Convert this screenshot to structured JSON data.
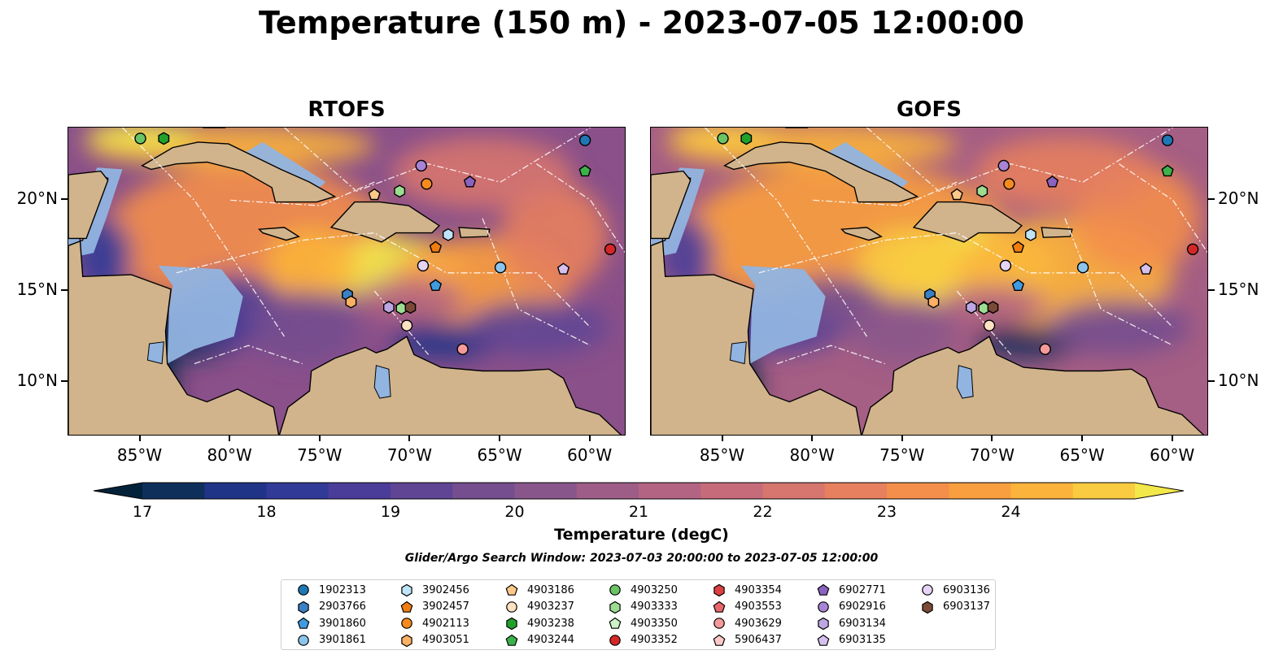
{
  "title": "Temperature (150 m) - 2023-07-05 12:00:00",
  "panels": [
    {
      "title": "RTOFS",
      "variant": 0
    },
    {
      "title": "GOFS",
      "variant": 1
    }
  ],
  "lon_ticks": [
    "85°W",
    "80°W",
    "75°W",
    "70°W",
    "65°W",
    "60°W"
  ],
  "lat_ticks": [
    "20°N",
    "15°N",
    "10°N"
  ],
  "colorbar": {
    "label": "Temperature (degC)",
    "ticks": [
      "17",
      "18",
      "19",
      "20",
      "21",
      "22",
      "23",
      "24"
    ],
    "vmin": 16.75,
    "vmax": 24.5,
    "step": 0.5,
    "colors": [
      "#03223a",
      "#0d2f5a",
      "#1f3487",
      "#323a97",
      "#4a3d99",
      "#5f4594",
      "#744e8f",
      "#89568b",
      "#9e5d87",
      "#b36482",
      "#c56b7a",
      "#d6766e",
      "#e6805e",
      "#f48e4b",
      "#fa9f3f",
      "#fbb33b",
      "#f9cb40",
      "#f2e84a"
    ]
  },
  "search_window": "Glider/Argo Search Window: 2023-07-03 20:00:00 to 2023-07-05 12:00:00",
  "legend": [
    {
      "id": "1902313",
      "color": "#1f77b4",
      "marker": "circle"
    },
    {
      "id": "2903766",
      "color": "#3b7fc4",
      "marker": "hexagon"
    },
    {
      "id": "3901860",
      "color": "#3f9be0",
      "marker": "pentagon"
    },
    {
      "id": "3901861",
      "color": "#8cc4ec",
      "marker": "circle"
    },
    {
      "id": "3902456",
      "color": "#bfe4f7",
      "marker": "hexagon"
    },
    {
      "id": "3902457",
      "color": "#f07d10",
      "marker": "pentagon"
    },
    {
      "id": "4902113",
      "color": "#f58a1f",
      "marker": "circle"
    },
    {
      "id": "4903051",
      "color": "#fbb064",
      "marker": "hexagon"
    },
    {
      "id": "4903186",
      "color": "#fdc98a",
      "marker": "pentagon"
    },
    {
      "id": "4903237",
      "color": "#fde2c2",
      "marker": "circle"
    },
    {
      "id": "4903238",
      "color": "#22a02c",
      "marker": "hexagon"
    },
    {
      "id": "4903244",
      "color": "#3cb34a",
      "marker": "pentagon"
    },
    {
      "id": "4903250",
      "color": "#6ac463",
      "marker": "circle"
    },
    {
      "id": "4903333",
      "color": "#9cdd92",
      "marker": "hexagon"
    },
    {
      "id": "4903350",
      "color": "#cdf2c6",
      "marker": "pentagon"
    },
    {
      "id": "4903352",
      "color": "#d62728",
      "marker": "circle"
    },
    {
      "id": "4903354",
      "color": "#dc4040",
      "marker": "hexagon"
    },
    {
      "id": "4903553",
      "color": "#e8676b",
      "marker": "pentagon"
    },
    {
      "id": "4903629",
      "color": "#f59a9a",
      "marker": "circle"
    },
    {
      "id": "5906437",
      "color": "#fcc9c9",
      "marker": "pentagon"
    },
    {
      "id": "6902771",
      "color": "#8c62c0",
      "marker": "pentagon"
    },
    {
      "id": "6902916",
      "color": "#a884d6",
      "marker": "circle"
    },
    {
      "id": "6903134",
      "color": "#bda6e2",
      "marker": "hexagon"
    },
    {
      "id": "6903135",
      "color": "#d6c0ee",
      "marker": "pentagon"
    },
    {
      "id": "6903136",
      "color": "#e6d4f6",
      "marker": "circle"
    },
    {
      "id": "6903137",
      "color": "#7b4a36",
      "marker": "hexagon"
    }
  ],
  "map_extent": {
    "lon": [
      -89,
      -58
    ],
    "lat": [
      7,
      24
    ]
  },
  "floats": [
    {
      "id": "1902313",
      "lon": -60.3,
      "lat": 23.3
    },
    {
      "id": "4903244",
      "lon": -60.3,
      "lat": 21.6
    },
    {
      "id": "4903250",
      "lon": -85.0,
      "lat": 23.4
    },
    {
      "id": "4903238",
      "lon": -83.7,
      "lat": 23.4
    },
    {
      "id": "6902916",
      "lon": -69.4,
      "lat": 21.9
    },
    {
      "id": "4902113",
      "lon": -69.1,
      "lat": 20.9
    },
    {
      "id": "6902771",
      "lon": -66.7,
      "lat": 21.0
    },
    {
      "id": "4903186",
      "lon": -72.0,
      "lat": 20.3
    },
    {
      "id": "4903333",
      "lon": -70.6,
      "lat": 20.5
    },
    {
      "id": "3902456",
      "lon": -67.9,
      "lat": 18.1
    },
    {
      "id": "3902457",
      "lon": -68.6,
      "lat": 17.4
    },
    {
      "id": "4903352",
      "lon": -58.9,
      "lat": 17.3
    },
    {
      "id": "6903136",
      "lon": -69.3,
      "lat": 16.4
    },
    {
      "id": "3901861",
      "lon": -65.0,
      "lat": 16.3
    },
    {
      "id": "6903135",
      "lon": -61.5,
      "lat": 16.2
    },
    {
      "id": "3901860",
      "lon": -68.6,
      "lat": 15.3
    },
    {
      "id": "2903766",
      "lon": -73.5,
      "lat": 14.8
    },
    {
      "id": "4903051",
      "lon": -73.3,
      "lat": 14.4
    },
    {
      "id": "6903134",
      "lon": -71.2,
      "lat": 14.1
    },
    {
      "id": "4903350",
      "lon": -70.5,
      "lat": 14.1
    },
    {
      "id": "4903333",
      "lon": -70.5,
      "lat": 14.05
    },
    {
      "id": "6903137",
      "lon": -70.0,
      "lat": 14.1
    },
    {
      "id": "4903629",
      "lon": -67.1,
      "lat": 11.8
    },
    {
      "id": "4903237",
      "lon": -70.2,
      "lat": 13.1
    }
  ]
}
